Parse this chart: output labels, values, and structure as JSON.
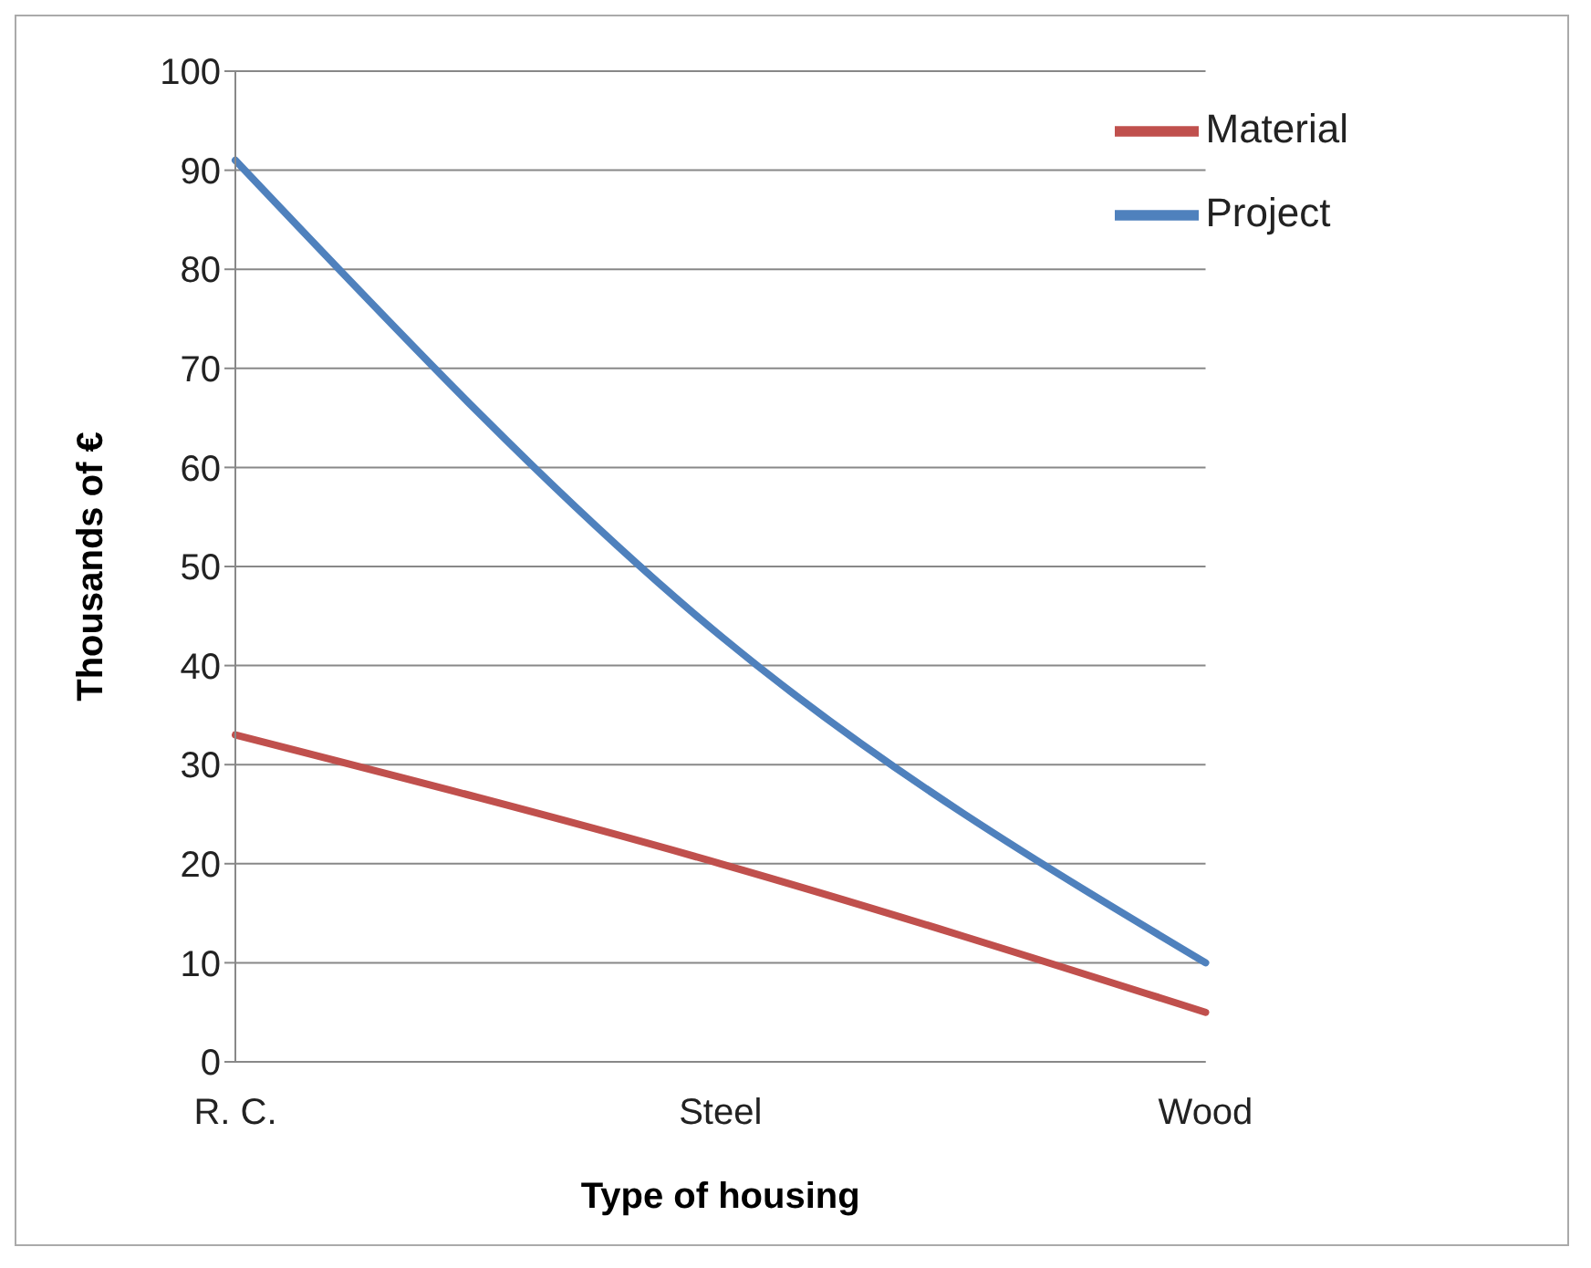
{
  "chart_data": {
    "type": "line",
    "xlabel": "Type of housing",
    "ylabel": "Thousands of €",
    "categories": [
      "R. C.",
      "Steel",
      "Wood"
    ],
    "series": [
      {
        "name": "Project",
        "color": "#4f81bd",
        "values": [
          91,
          43,
          10
        ]
      },
      {
        "name": "Material",
        "color": "#c0504d",
        "values": [
          33,
          20,
          5
        ]
      }
    ],
    "ylim": [
      0,
      100
    ],
    "yticks": [
      0,
      10,
      20,
      30,
      40,
      50,
      60,
      70,
      80,
      90,
      100
    ],
    "grid": "y",
    "legend": "top right",
    "marker": "none",
    "line_style": "solid"
  }
}
